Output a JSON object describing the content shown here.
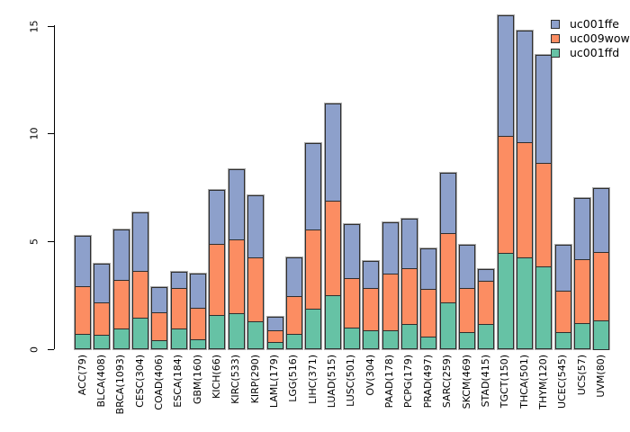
{
  "chart_data": {
    "type": "bar",
    "stacked": true,
    "title": "",
    "xlabel": "",
    "ylabel": "",
    "grid": false,
    "ylim": [
      0,
      15.5
    ],
    "yticks": [
      0,
      5,
      10,
      15
    ],
    "legend": {
      "position": "top-right",
      "entries": [
        "uc001ffe",
        "uc009wow",
        "uc001ffd"
      ]
    },
    "categories": [
      "ACC(79)",
      "BLCA(408)",
      "BRCA(1093)",
      "CESC(304)",
      "COAD(406)",
      "ESCA(184)",
      "GBM(160)",
      "KICH(66)",
      "KIRC(533)",
      "KIRP(290)",
      "LAML(179)",
      "LGG(516)",
      "LIHC(371)",
      "LUAD(515)",
      "LUSC(501)",
      "OV(304)",
      "PAAD(178)",
      "PCPG(179)",
      "PRAD(497)",
      "SARC(259)",
      "SKCM(469)",
      "STAD(415)",
      "TGCT(150)",
      "THCA(501)",
      "THYM(120)",
      "UCEC(545)",
      "UCS(57)",
      "UVM(80)"
    ],
    "series": [
      {
        "name": "uc001ffe",
        "color": "#8DA0CB",
        "values": [
          2.35,
          1.8,
          2.35,
          2.7,
          1.17,
          0.75,
          1.58,
          2.5,
          3.25,
          2.9,
          0.63,
          1.8,
          4.0,
          4.5,
          2.5,
          1.25,
          2.4,
          2.3,
          1.9,
          2.8,
          2.0,
          0.55,
          5.6,
          5.2,
          5.0,
          2.15,
          2.85,
          2.95
        ]
      },
      {
        "name": "uc009wow",
        "color": "#FC8D62",
        "values": [
          2.2,
          1.5,
          2.25,
          2.2,
          1.3,
          1.9,
          1.48,
          3.3,
          3.45,
          2.95,
          0.56,
          1.75,
          3.7,
          4.4,
          2.3,
          1.95,
          2.6,
          2.6,
          2.2,
          3.2,
          2.05,
          2.0,
          5.45,
          5.35,
          4.8,
          1.9,
          2.95,
          3.2
        ]
      },
      {
        "name": "uc001ffd",
        "color": "#66C2A5",
        "values": [
          0.7,
          0.65,
          0.95,
          1.45,
          0.4,
          0.95,
          0.45,
          1.6,
          1.65,
          1.3,
          0.33,
          0.7,
          1.85,
          2.5,
          1.0,
          0.9,
          0.9,
          1.15,
          0.6,
          2.2,
          0.8,
          1.15,
          4.45,
          4.25,
          3.85,
          0.8,
          1.2,
          1.35
        ]
      }
    ],
    "stack_order_bottom_to_top": [
      "uc001ffd",
      "uc009wow",
      "uc001ffe"
    ],
    "colors": {
      "background": "#FFFFFF",
      "bar_border": "#2E2E2E",
      "axis": "#000000"
    }
  }
}
